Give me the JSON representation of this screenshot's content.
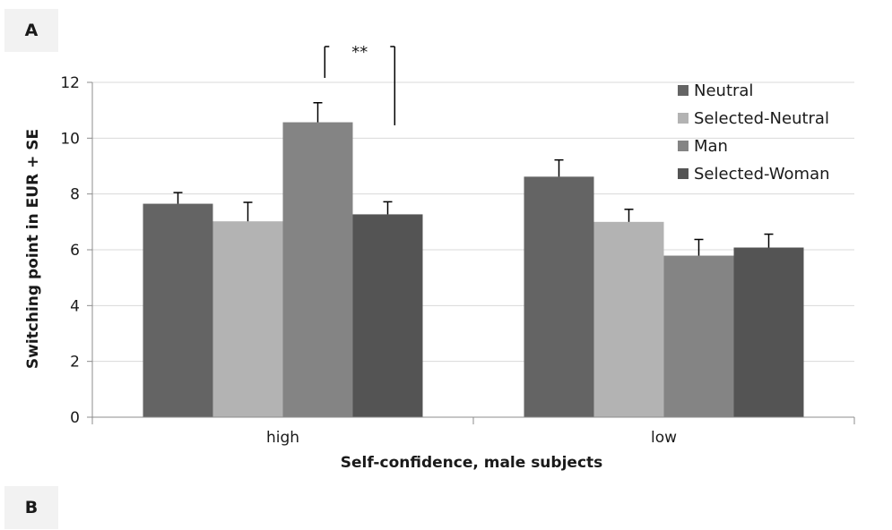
{
  "panel_labels": {
    "a": "A",
    "b": "B"
  },
  "chart_data": {
    "type": "bar",
    "title": "",
    "xlabel": "Self-confidence, male subjects",
    "ylabel": "Switching point in EUR + SE",
    "ylim": [
      0,
      12
    ],
    "yticks": [
      0,
      2,
      4,
      6,
      8,
      10,
      12
    ],
    "categories": [
      "high",
      "low"
    ],
    "series": [
      {
        "name": "Neutral",
        "values": [
          7.65,
          8.62
        ],
        "errors": [
          0.4,
          0.6
        ],
        "color": "#646464"
      },
      {
        "name": "Selected-Neutral",
        "values": [
          7.02,
          7.0
        ],
        "errors": [
          0.68,
          0.45
        ],
        "color": "#b3b3b3"
      },
      {
        "name": "Man",
        "values": [
          10.57,
          5.79
        ],
        "errors": [
          0.7,
          0.58
        ],
        "color": "#848484"
      },
      {
        "name": "Selected-Woman",
        "values": [
          7.27,
          6.08
        ],
        "errors": [
          0.45,
          0.48
        ],
        "color": "#545454"
      }
    ],
    "legend_position": "top-right",
    "grid": "horizontal",
    "annotation": {
      "text": "**",
      "category": "high",
      "between_series": [
        "Man",
        "Selected-Woman"
      ]
    }
  }
}
